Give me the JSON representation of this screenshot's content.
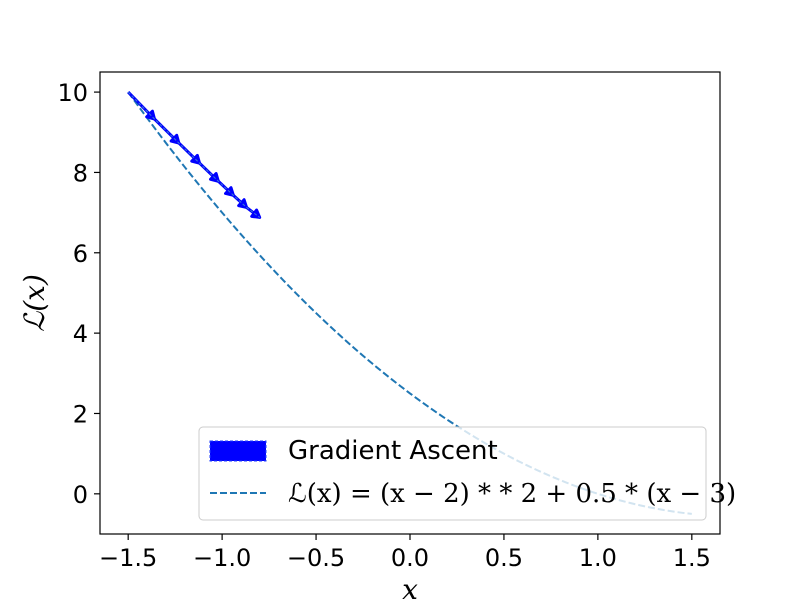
{
  "chart_data": {
    "type": "line",
    "title": "",
    "xlabel": "x",
    "ylabel": "ℒ(x)",
    "xlim": [
      -1.65,
      1.65
    ],
    "ylim": [
      -1.0,
      10.5
    ],
    "x_ticks": [
      -1.5,
      -1.0,
      -0.5,
      0.0,
      0.5,
      1.0,
      1.5
    ],
    "x_tick_labels": [
      "−1.5",
      "−1.0",
      "−0.5",
      "0.0",
      "0.5",
      "1.0",
      "1.5"
    ],
    "y_ticks": [
      0,
      2,
      4,
      6,
      8,
      10
    ],
    "y_tick_labels": [
      "0",
      "2",
      "4",
      "6",
      "8",
      "10"
    ],
    "grid": false,
    "legend_position": "lower-right",
    "series": [
      {
        "name": "Gradient Ascent",
        "style": "arrows",
        "color": "#0000ff",
        "x": [
          -1.5,
          -1.36,
          -1.23,
          -1.12,
          -1.02,
          -0.94,
          -0.87,
          -0.8
        ],
        "y": [
          10.0,
          9.33,
          8.73,
          8.23,
          7.78,
          7.43,
          7.13,
          6.88
        ]
      },
      {
        "name": "ℒ(x) = (x − 2) * * 2 + 0.5 * (x − 3)",
        "style": "dashed",
        "color": "#1f77b4",
        "expression": "(x-2)**2+0.5*(x-3)",
        "x_range": [
          -1.5,
          1.5
        ]
      }
    ]
  },
  "legend": {
    "entry1": "Gradient Ascent",
    "entry2": "ℒ(x) = (x − 2) * * 2 + 0.5 * (x − 3)"
  }
}
